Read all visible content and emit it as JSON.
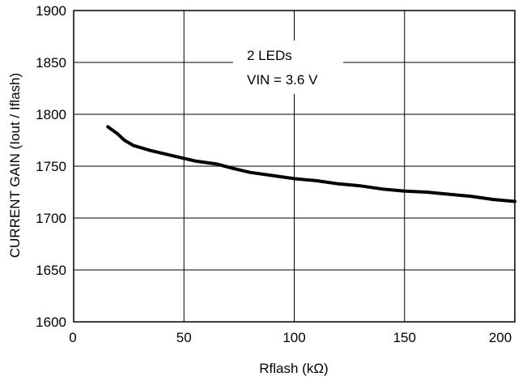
{
  "chart_data": {
    "type": "line",
    "title": "",
    "xlabel": "Rflash (kΩ)",
    "ylabel": "CURRENT GAIN (Iout / Iflash)",
    "xlim": [
      0,
      200
    ],
    "ylim": [
      1600,
      1900
    ],
    "x_ticks": [
      "0",
      "50",
      "100",
      "150",
      "200"
    ],
    "y_ticks": [
      "1600",
      "1650",
      "1700",
      "1750",
      "1800",
      "1850",
      "1900"
    ],
    "grid": true,
    "annotation": [
      "2 LEDs",
      "VIN = 3.6 V"
    ],
    "series": [
      {
        "x": [
          15.5,
          20,
          23,
          27,
          35,
          45,
          55,
          65,
          72,
          80,
          90,
          100,
          110,
          120,
          130,
          140,
          150,
          160,
          170,
          180,
          190,
          200
        ],
        "y": [
          1788,
          1781,
          1775,
          1770,
          1765,
          1760,
          1755,
          1752,
          1748,
          1744,
          1741,
          1738,
          1736,
          1733,
          1731,
          1728,
          1726,
          1725,
          1723,
          1721,
          1718,
          1716
        ]
      }
    ]
  }
}
